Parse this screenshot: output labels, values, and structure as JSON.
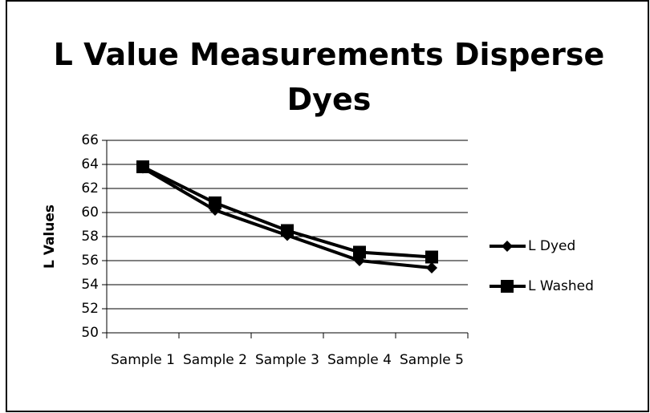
{
  "chart_data": {
    "type": "line",
    "title": "L Value Measurements Disperse Dyes",
    "y_label": "L Values",
    "categories": [
      "Sample 1",
      "Sample 2",
      "Sample 3",
      "Sample 4",
      "Sample 5"
    ],
    "series": [
      {
        "name": "L Dyed",
        "color": "#000000",
        "marker": "diamond",
        "values": [
          63.7,
          60.2,
          58.1,
          56.0,
          55.4
        ]
      },
      {
        "name": "L Washed",
        "color": "#000000",
        "marker": "square",
        "values": [
          63.8,
          60.8,
          58.5,
          56.7,
          56.3
        ]
      }
    ],
    "ylim": [
      50,
      66
    ],
    "yticks": [
      50,
      52,
      54,
      56,
      58,
      60,
      62,
      64,
      66
    ],
    "grid": true,
    "legend": "right"
  }
}
